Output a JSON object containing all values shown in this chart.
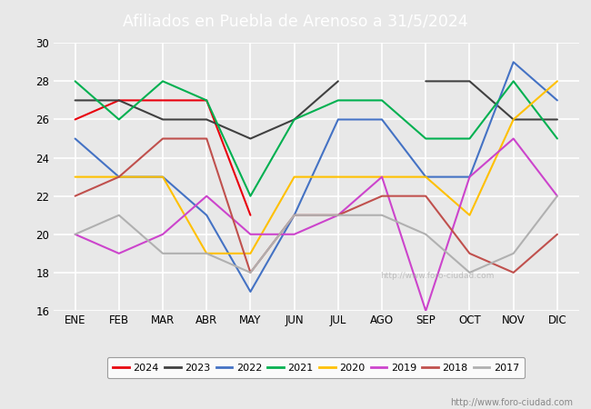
{
  "title": "Afiliados en Puebla de Arenoso a 31/5/2024",
  "header_bg": "#5b9bd5",
  "months": [
    "ENE",
    "FEB",
    "MAR",
    "ABR",
    "MAY",
    "JUN",
    "JUL",
    "AGO",
    "SEP",
    "OCT",
    "NOV",
    "DIC"
  ],
  "series": [
    {
      "year": "2024",
      "color": "#e8000d",
      "data": [
        26,
        27,
        27,
        27,
        21,
        null,
        null,
        null,
        null,
        null,
        null,
        null
      ]
    },
    {
      "year": "2023",
      "color": "#404040",
      "data": [
        27,
        27,
        26,
        26,
        25,
        26,
        28,
        null,
        28,
        28,
        26,
        26
      ]
    },
    {
      "year": "2022",
      "color": "#4472c4",
      "data": [
        25,
        23,
        23,
        21,
        17,
        21,
        26,
        26,
        23,
        23,
        29,
        27
      ]
    },
    {
      "year": "2021",
      "color": "#00b050",
      "data": [
        28,
        26,
        28,
        27,
        22,
        26,
        27,
        27,
        25,
        25,
        28,
        25
      ]
    },
    {
      "year": "2020",
      "color": "#ffc000",
      "data": [
        23,
        23,
        23,
        19,
        19,
        23,
        23,
        23,
        23,
        21,
        26,
        28
      ]
    },
    {
      "year": "2019",
      "color": "#cc44cc",
      "data": [
        20,
        19,
        20,
        22,
        20,
        20,
        21,
        23,
        16,
        23,
        25,
        22
      ]
    },
    {
      "year": "2018",
      "color": "#c0504d",
      "data": [
        22,
        23,
        25,
        25,
        18,
        21,
        21,
        22,
        22,
        19,
        18,
        20
      ]
    },
    {
      "year": "2017",
      "color": "#b0b0b0",
      "data": [
        20,
        21,
        19,
        19,
        18,
        21,
        21,
        21,
        20,
        18,
        19,
        22
      ]
    }
  ],
  "ylim": [
    16,
    30
  ],
  "yticks": [
    16,
    18,
    20,
    22,
    24,
    26,
    28,
    30
  ],
  "bg_color": "#e8e8e8",
  "plot_bg": "#e8e8e8",
  "grid_color": "#ffffff",
  "watermark": "http://www.foro-ciudad.com",
  "linewidth": 1.5
}
